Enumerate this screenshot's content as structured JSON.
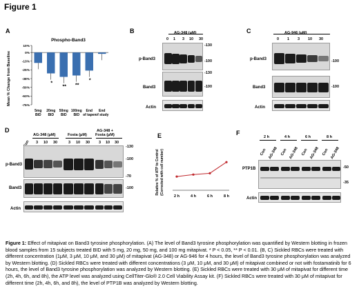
{
  "figure_title": "Figure 1",
  "panels": {
    "A": {
      "letter": "A",
      "chart_data": {
        "type": "bar",
        "title": "Phospho-Band3",
        "ylabel": "Mean % Change from Baseline",
        "ylim": [
          -75,
          10
        ],
        "yticks": [
          "10%",
          "0%",
          "-13%",
          "-25%",
          "-38%",
          "-50%",
          "-63%",
          "-75%"
        ],
        "categories": [
          "5mg BID",
          "20mg BID",
          "50mg BID",
          "100mg BID",
          "End of taper",
          "End of study"
        ],
        "values": [
          -15,
          -30,
          -35,
          -33,
          -26,
          -2
        ],
        "significance": [
          "",
          "*",
          "**",
          "**",
          "*",
          ""
        ],
        "color": "#3a6fb0"
      }
    },
    "B": {
      "letter": "B",
      "treatment": "AG-348 (μM)",
      "concentrations": [
        "0",
        "1",
        "3",
        "10",
        "30"
      ],
      "rows": [
        "p-Band3",
        "Band3",
        "Actin"
      ],
      "markers_top": [
        "-130",
        "-100"
      ],
      "markers_mid": [
        "-130",
        "-100"
      ]
    },
    "C": {
      "letter": "C",
      "treatment": "AG-946 (μM)",
      "concentrations": [
        "0",
        "1",
        "3",
        "10",
        "30"
      ],
      "rows": [
        "p-Band3",
        "Band3",
        "Actin"
      ],
      "markers_top": [
        "-100"
      ],
      "markers_mid": [
        "-100"
      ]
    },
    "D": {
      "letter": "D",
      "groups": [
        "AG-348 (μM)",
        "Fosta (μM)",
        "AG-348 +",
        "Fosta (μM)"
      ],
      "lanes": [
        "Con",
        "3",
        "10",
        "30",
        "3",
        "10",
        "30",
        "3",
        "10",
        "30"
      ],
      "rows": [
        "p-Band3",
        "Band3",
        "Actin"
      ],
      "markers_top": [
        "-130",
        "-100",
        "-70"
      ],
      "markers_mid": [
        "-100"
      ]
    },
    "E": {
      "letter": "E",
      "chart_data": {
        "type": "line",
        "ylabel": "Relative % of ATP to Control",
        "ylabel2": "(Corrected with cell number)",
        "categories": [
          "2 h",
          "4 h",
          "6 h",
          "8 h"
        ],
        "values": [
          102,
          105,
          107,
          124
        ],
        "color": "#c0282d"
      }
    },
    "F": {
      "letter": "F",
      "timepoints": [
        "2 h",
        "4 h",
        "6 h",
        "8 h"
      ],
      "lanes": [
        "Con",
        "AG-348",
        "Con",
        "AG-348",
        "Con",
        "AG-348",
        "Con",
        "AG-348"
      ],
      "rows": [
        "PTP1B",
        "Actin"
      ],
      "markers": [
        "-50",
        "-35"
      ]
    }
  },
  "caption": {
    "lead": "Figure 1:",
    "text": " Effect of mitapivat on Band3 tyrosine phosphorylation. (A) The level of Band3 tyrosine phosphorylation was quantified by Western blotting in frozen blood samples from 15 subjects treated BID with 5 mg, 20 mg, 50 mg, and 100 mg mitapivat. * P < 0.05, ** P < 0.01. (B, C) Sickled RBCs were treated with different concentration (1μM, 3 μM, 10 μM, and 30 μM) of mitapivat (AG-348) or AG-946 for 4 hours, the level of Band3 tyrosine phosphorylation was analyzed by Western blotting. (D) Sickled RBCs were treated with different concentrations (3 μM, 10 μM, and 30 μM) of mitapivat combined or not with fostamatinib for 6 hours, the level of Band3 tyrosine phosphorylation was analyzed by Western blotting. (E) Sickled RBCs were treated with 30 μM of mitapivat for different time (2h, 4h, 6h, and 8h), the ATP level was analyzed using CellTiter-Glo® 2.0 Cell Viability Assay kit. (F) Sickled RBCs were treated with 30 μM of mitapivat for different time (2h, 4h, 6h, and 8h), the level of PTP1B was analyzed by Western blotting."
  }
}
